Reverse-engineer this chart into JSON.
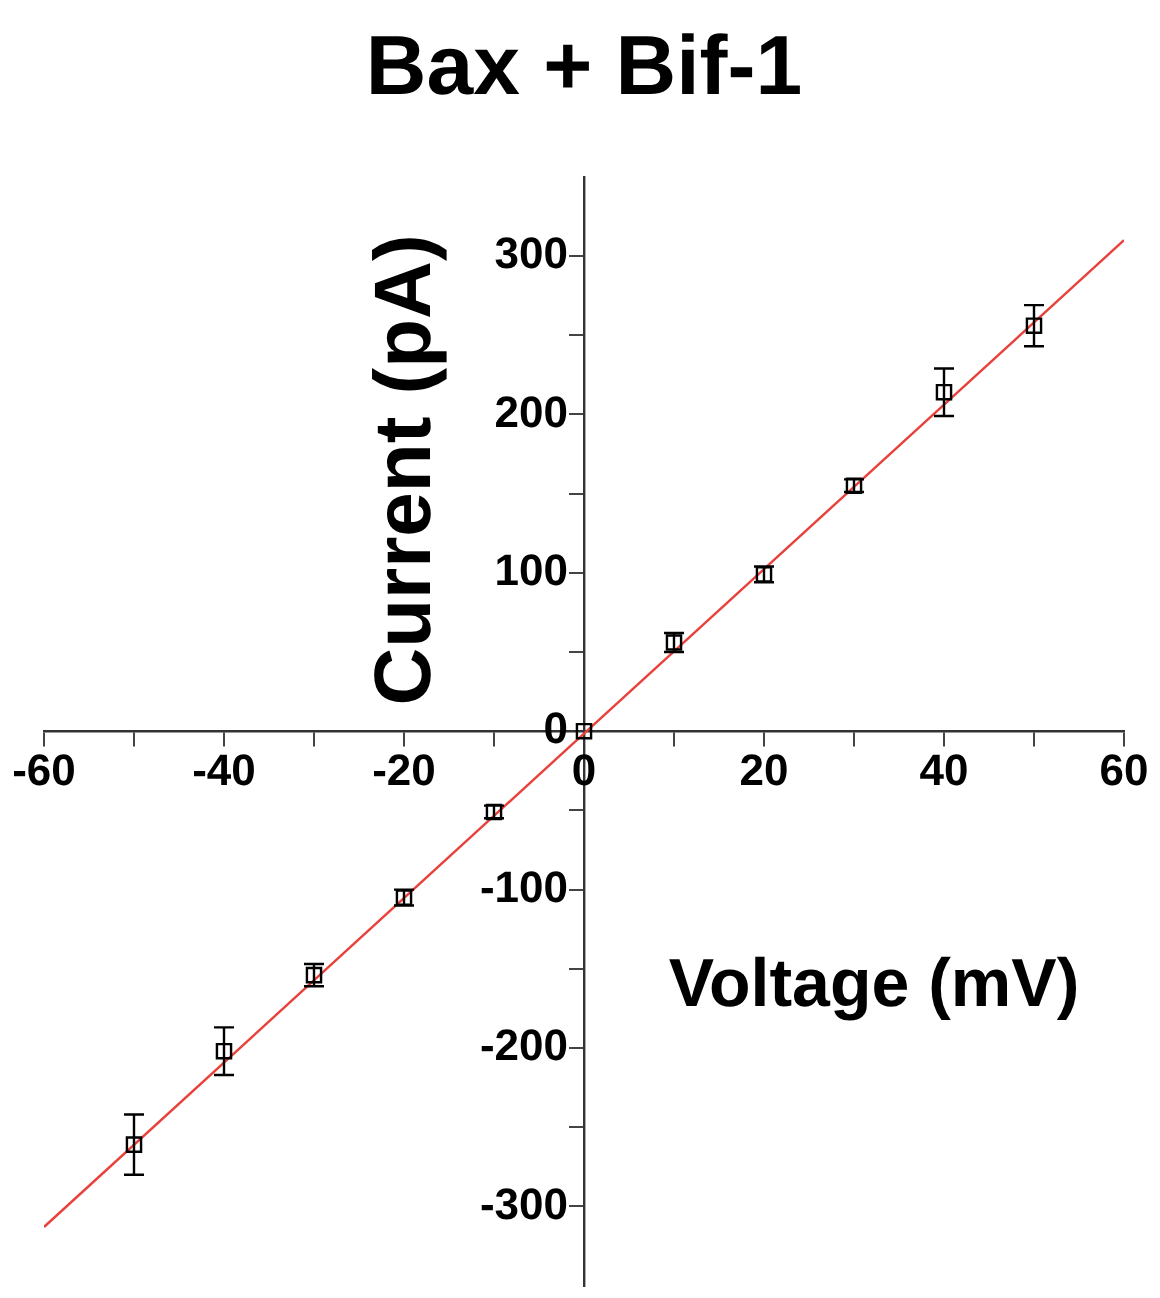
{
  "chart_data": {
    "type": "scatter",
    "title": "Bax + Bif-1",
    "xlabel": "Voltage (mV)",
    "ylabel": "Current (pA)",
    "xlim": [
      -60,
      60
    ],
    "ylim": [
      -350,
      350
    ],
    "xticks": [
      -60,
      {
        "value": -50,
        "label": null
      },
      -40,
      {
        "value": -30,
        "label": null
      },
      -20,
      {
        "value": -10,
        "label": null
      },
      0,
      {
        "value": 10,
        "label": null
      },
      20,
      {
        "value": 30,
        "label": null
      },
      40,
      {
        "value": 50,
        "label": null
      },
      60
    ],
    "yticks": [
      -300,
      {
        "value": -250,
        "label": null
      },
      -200,
      {
        "value": -150,
        "label": null
      },
      -100,
      {
        "value": -50,
        "label": null
      },
      0,
      {
        "value": 50,
        "label": null
      },
      100,
      {
        "value": 150,
        "label": null
      },
      200,
      {
        "value": 250,
        "label": null
      },
      300
    ],
    "grid": false,
    "legend": false,
    "series": [
      {
        "type": "scatter",
        "marker": "square",
        "color": "#000000",
        "x": [
          -50,
          -40,
          -30,
          -20,
          -10,
          0,
          10,
          20,
          30,
          40,
          50
        ],
        "values": [
          -261,
          -202,
          -154,
          -105,
          -51,
          0,
          56,
          99,
          155,
          214,
          256
        ],
        "errors": [
          19,
          15,
          7,
          5,
          4,
          null,
          6,
          5,
          4,
          15,
          13
        ]
      },
      {
        "type": "line",
        "color": "#e8403a",
        "x": [
          -60,
          60
        ],
        "values": [
          -313,
          310
        ]
      }
    ]
  }
}
